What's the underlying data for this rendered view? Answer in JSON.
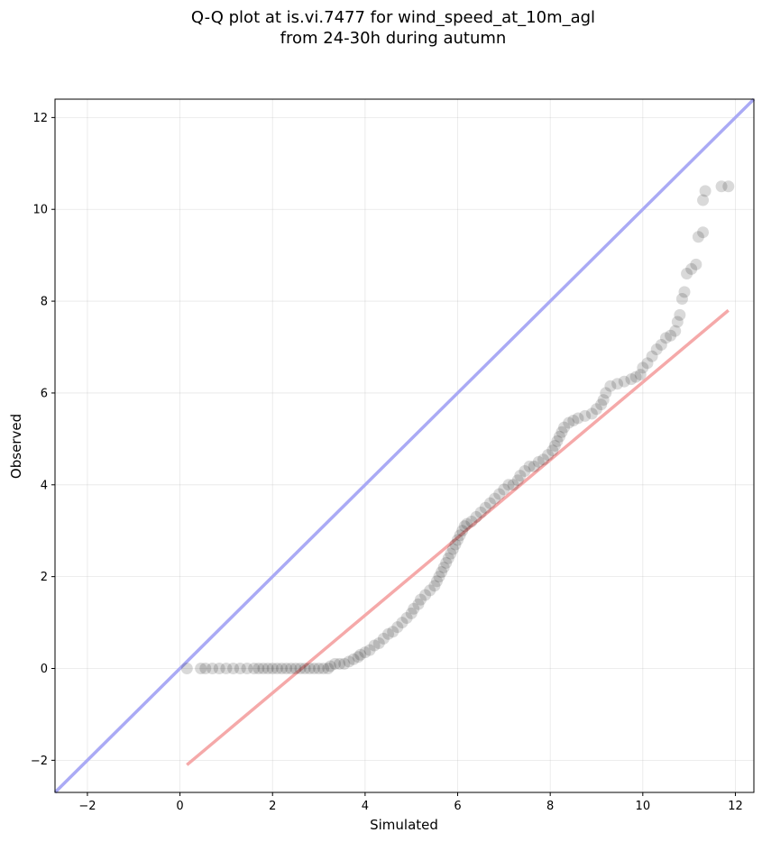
{
  "chart_data": {
    "type": "scatter",
    "title_line1": "Q-Q plot at is.vi.7477 for wind_speed_at_10m_agl",
    "title_line2": "from 24-30h during autumn",
    "xlabel": "Simulated",
    "ylabel": "Observed",
    "xlim": [
      -2.7,
      12.4
    ],
    "ylim": [
      -2.7,
      12.4
    ],
    "xticks": [
      -2,
      0,
      2,
      4,
      6,
      8,
      10,
      12
    ],
    "yticks": [
      -2,
      0,
      2,
      4,
      6,
      8,
      10,
      12
    ],
    "xtick_labels": [
      "−2",
      "0",
      "2",
      "4",
      "6",
      "8",
      "10",
      "12"
    ],
    "ytick_labels": [
      "−2",
      "0",
      "2",
      "4",
      "6",
      "8",
      "10",
      "12"
    ],
    "grid": true,
    "identity_line": {
      "color": "#aaaaf5",
      "from": [
        -2.7,
        -2.7
      ],
      "to": [
        12.4,
        12.4
      ]
    },
    "fit_line": {
      "color": "#f5a9a9",
      "from": [
        0.15,
        -2.1
      ],
      "to": [
        11.85,
        7.8
      ]
    },
    "marker_color": "#000000",
    "points": [
      [
        0.15,
        0.0
      ],
      [
        0.45,
        0.0
      ],
      [
        0.55,
        0.0
      ],
      [
        0.7,
        0.0
      ],
      [
        0.85,
        0.0
      ],
      [
        1.0,
        0.0
      ],
      [
        1.15,
        0.0
      ],
      [
        1.3,
        0.0
      ],
      [
        1.45,
        0.0
      ],
      [
        1.6,
        0.0
      ],
      [
        1.7,
        0.0
      ],
      [
        1.8,
        0.0
      ],
      [
        1.9,
        0.0
      ],
      [
        2.0,
        0.0
      ],
      [
        2.1,
        0.0
      ],
      [
        2.2,
        0.0
      ],
      [
        2.3,
        0.0
      ],
      [
        2.4,
        0.0
      ],
      [
        2.5,
        0.0
      ],
      [
        2.6,
        0.0
      ],
      [
        2.7,
        0.0
      ],
      [
        2.8,
        0.0
      ],
      [
        2.9,
        0.0
      ],
      [
        3.0,
        0.0
      ],
      [
        3.1,
        0.0
      ],
      [
        3.2,
        0.0
      ],
      [
        3.25,
        0.05
      ],
      [
        3.35,
        0.1
      ],
      [
        3.45,
        0.1
      ],
      [
        3.55,
        0.1
      ],
      [
        3.65,
        0.15
      ],
      [
        3.75,
        0.2
      ],
      [
        3.85,
        0.25
      ],
      [
        3.9,
        0.3
      ],
      [
        4.0,
        0.35
      ],
      [
        4.1,
        0.4
      ],
      [
        4.2,
        0.5
      ],
      [
        4.3,
        0.55
      ],
      [
        4.4,
        0.65
      ],
      [
        4.5,
        0.75
      ],
      [
        4.6,
        0.8
      ],
      [
        4.7,
        0.9
      ],
      [
        4.8,
        1.0
      ],
      [
        4.9,
        1.1
      ],
      [
        5.0,
        1.2
      ],
      [
        5.05,
        1.3
      ],
      [
        5.15,
        1.4
      ],
      [
        5.2,
        1.5
      ],
      [
        5.3,
        1.6
      ],
      [
        5.4,
        1.7
      ],
      [
        5.5,
        1.8
      ],
      [
        5.55,
        1.9
      ],
      [
        5.6,
        2.0
      ],
      [
        5.65,
        2.1
      ],
      [
        5.7,
        2.2
      ],
      [
        5.75,
        2.3
      ],
      [
        5.8,
        2.4
      ],
      [
        5.85,
        2.5
      ],
      [
        5.9,
        2.6
      ],
      [
        5.95,
        2.7
      ],
      [
        6.0,
        2.8
      ],
      [
        6.05,
        2.9
      ],
      [
        6.1,
        3.0
      ],
      [
        6.15,
        3.1
      ],
      [
        6.2,
        3.15
      ],
      [
        6.3,
        3.2
      ],
      [
        6.4,
        3.3
      ],
      [
        6.5,
        3.4
      ],
      [
        6.6,
        3.5
      ],
      [
        6.7,
        3.6
      ],
      [
        6.8,
        3.7
      ],
      [
        6.9,
        3.8
      ],
      [
        7.0,
        3.9
      ],
      [
        7.1,
        4.0
      ],
      [
        7.2,
        4.0
      ],
      [
        7.3,
        4.1
      ],
      [
        7.35,
        4.2
      ],
      [
        7.45,
        4.3
      ],
      [
        7.55,
        4.4
      ],
      [
        7.65,
        4.4
      ],
      [
        7.75,
        4.5
      ],
      [
        7.85,
        4.55
      ],
      [
        7.95,
        4.65
      ],
      [
        8.05,
        4.75
      ],
      [
        8.1,
        4.85
      ],
      [
        8.15,
        4.95
      ],
      [
        8.2,
        5.05
      ],
      [
        8.25,
        5.15
      ],
      [
        8.3,
        5.25
      ],
      [
        8.4,
        5.35
      ],
      [
        8.5,
        5.4
      ],
      [
        8.6,
        5.45
      ],
      [
        8.75,
        5.5
      ],
      [
        8.9,
        5.55
      ],
      [
        9.0,
        5.65
      ],
      [
        9.1,
        5.75
      ],
      [
        9.15,
        5.85
      ],
      [
        9.2,
        6.0
      ],
      [
        9.3,
        6.15
      ],
      [
        9.45,
        6.2
      ],
      [
        9.6,
        6.25
      ],
      [
        9.75,
        6.3
      ],
      [
        9.85,
        6.35
      ],
      [
        9.95,
        6.4
      ],
      [
        10.0,
        6.55
      ],
      [
        10.1,
        6.65
      ],
      [
        10.2,
        6.8
      ],
      [
        10.3,
        6.95
      ],
      [
        10.4,
        7.05
      ],
      [
        10.5,
        7.2
      ],
      [
        10.6,
        7.25
      ],
      [
        10.7,
        7.35
      ],
      [
        10.75,
        7.55
      ],
      [
        10.8,
        7.7
      ],
      [
        10.85,
        8.05
      ],
      [
        10.9,
        8.2
      ],
      [
        10.95,
        8.6
      ],
      [
        11.05,
        8.7
      ],
      [
        11.15,
        8.8
      ],
      [
        11.2,
        9.4
      ],
      [
        11.3,
        9.5
      ],
      [
        11.3,
        10.2
      ],
      [
        11.35,
        10.4
      ],
      [
        11.7,
        10.5
      ],
      [
        11.85,
        10.5
      ]
    ]
  }
}
